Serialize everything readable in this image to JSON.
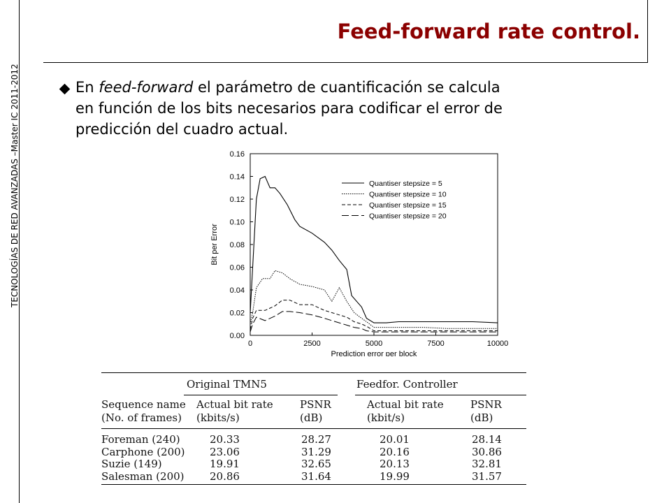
{
  "sidebar": {
    "text": "TECNOLOGÍAS DE RED AVANZADAS –Master  IC 2011-2012"
  },
  "slide": {
    "title": "Feed-forward rate control.",
    "bullet": {
      "prefix": "En ",
      "italic": "feed-forward",
      "line1_rest": " el parámetro de cuantificación se calcula",
      "line2": "en función de los bits necesarios para codificar el error de",
      "line3": "predicción del cuadro actual."
    }
  },
  "chart_data": {
    "type": "line",
    "xlabel": "Prediction error per block",
    "ylabel": "Bit per Error",
    "xlim": [
      0,
      10000
    ],
    "ylim": [
      0,
      0.16
    ],
    "xticks": [
      "0",
      "2500",
      "5000",
      "7500",
      "10000"
    ],
    "yticks": [
      "0.00",
      "0.02",
      "0.04",
      "0.06",
      "0.08",
      "0.10",
      "0.12",
      "0.14",
      "0.16"
    ],
    "legend_position": "top-right",
    "series": [
      {
        "name": "Quantiser stepsize =  5",
        "style": "solid-thin",
        "x": [
          0,
          100,
          250,
          400,
          600,
          800,
          1000,
          1200,
          1500,
          1800,
          2000,
          2500,
          3000,
          3300,
          3600,
          3900,
          4100,
          4300,
          4500,
          4700,
          5000,
          5500,
          6000,
          7000,
          8000,
          9000,
          10000
        ],
        "y": [
          0.02,
          0.06,
          0.12,
          0.138,
          0.14,
          0.13,
          0.13,
          0.125,
          0.115,
          0.102,
          0.096,
          0.09,
          0.082,
          0.075,
          0.066,
          0.058,
          0.035,
          0.03,
          0.025,
          0.015,
          0.011,
          0.011,
          0.012,
          0.012,
          0.012,
          0.012,
          0.011
        ]
      },
      {
        "name": "Quantiser stepsize = 10",
        "style": "dotted",
        "x": [
          0,
          100,
          250,
          500,
          800,
          1000,
          1300,
          1600,
          2000,
          2500,
          3000,
          3300,
          3600,
          3900,
          4200,
          4500,
          4700,
          5000,
          6000,
          7000,
          8000,
          9000,
          10000
        ],
        "y": [
          0.01,
          0.02,
          0.042,
          0.05,
          0.05,
          0.057,
          0.055,
          0.05,
          0.045,
          0.043,
          0.04,
          0.03,
          0.042,
          0.03,
          0.02,
          0.015,
          0.012,
          0.007,
          0.007,
          0.007,
          0.006,
          0.006,
          0.006
        ]
      },
      {
        "name": "Quantiser stepsize = 15",
        "style": "short-dash",
        "x": [
          0,
          100,
          250,
          600,
          1000,
          1300,
          1600,
          2000,
          2500,
          3000,
          3300,
          3600,
          3900,
          4200,
          4500,
          4700,
          5000,
          6000,
          7000,
          8000,
          9000,
          10000
        ],
        "y": [
          0.005,
          0.015,
          0.022,
          0.022,
          0.026,
          0.031,
          0.031,
          0.027,
          0.027,
          0.022,
          0.02,
          0.018,
          0.016,
          0.012,
          0.01,
          0.008,
          0.004,
          0.004,
          0.004,
          0.004,
          0.004,
          0.004
        ]
      },
      {
        "name": "Quantiser stepsize = 20",
        "style": "long-dash",
        "x": [
          0,
          100,
          250,
          600,
          1000,
          1300,
          1600,
          2000,
          2500,
          3000,
          3300,
          3600,
          3900,
          4200,
          4500,
          4700,
          5000,
          6000,
          7000,
          8000,
          9000,
          10000
        ],
        "y": [
          0.003,
          0.01,
          0.016,
          0.013,
          0.017,
          0.021,
          0.021,
          0.02,
          0.018,
          0.015,
          0.013,
          0.011,
          0.009,
          0.007,
          0.006,
          0.004,
          0.003,
          0.003,
          0.003,
          0.003,
          0.003,
          0.003
        ]
      }
    ]
  },
  "table": {
    "group1": "Original TMN5",
    "group2": "Feedfor. Controller",
    "h_seq1": "Sequence name",
    "h_seq2": "(No. of frames)",
    "h_rate1": "Actual bit rate",
    "h_rate_unit1": "(kbits/s)",
    "h_psnr1": "PSNR",
    "h_psnr_unit1": "(dB)",
    "h_rate2": "Actual bit rate",
    "h_rate_unit2": "(kbit/s)",
    "h_psnr2": "PSNR",
    "h_psnr_unit2": "(dB)",
    "rows": [
      {
        "name": "Foreman (240)",
        "rate1": "20.33",
        "psnr1": "28.27",
        "rate2": "20.01",
        "psnr2": "28.14"
      },
      {
        "name": "Carphone (200)",
        "rate1": "23.06",
        "psnr1": "31.29",
        "rate2": "20.16",
        "psnr2": "30.86"
      },
      {
        "name": "Suzie (149)",
        "rate1": "19.91",
        "psnr1": "32.65",
        "rate2": "20.13",
        "psnr2": "32.81"
      },
      {
        "name": "Salesman (200)",
        "rate1": "20.86",
        "psnr1": "31.64",
        "rate2": "19.99",
        "psnr2": "31.57"
      }
    ]
  }
}
